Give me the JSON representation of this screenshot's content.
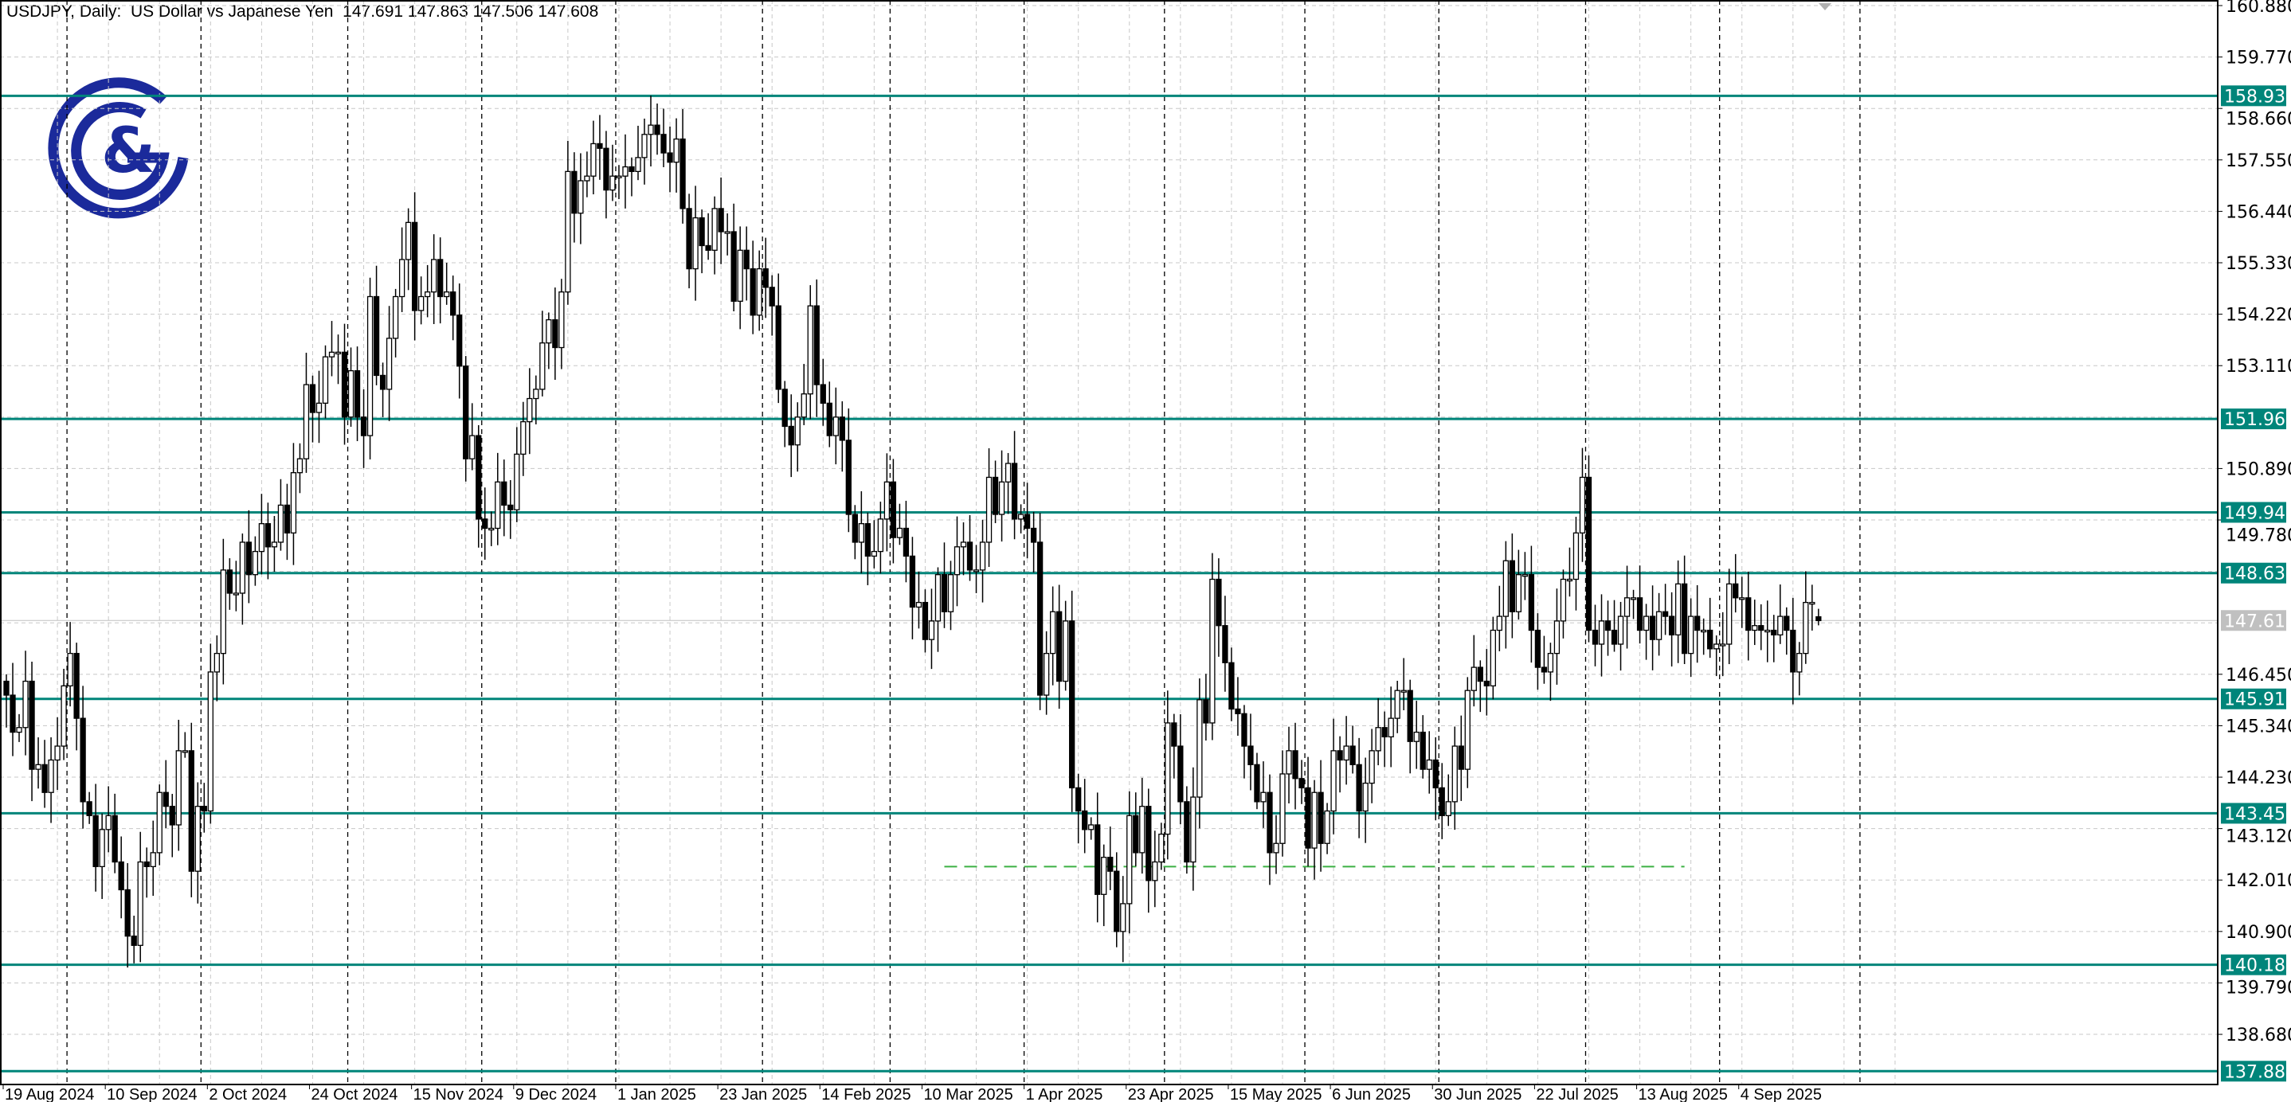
{
  "header": {
    "symbol": "USDJPY",
    "timeframe": "Daily",
    "description": "US Dollar vs Japanese Yen",
    "ohlc": "147.691 147.863 147.506 147.608",
    "title_text": "USDJPY, Daily:  US Dollar vs Japanese Yen  147.691 147.863 147.506 147.608"
  },
  "logo": {
    "text": "G&G",
    "color": "#1b2a9b"
  },
  "colors": {
    "level_line": "#00857a",
    "bid_label": "#c0c0c0",
    "dashed_support": "#3cb043",
    "bull_body": "#ffffff",
    "bear_body": "#000000",
    "grid": "#c8c8c8"
  },
  "chart_data": {
    "type": "candlestick",
    "symbol": "USDJPY",
    "timeframe": "Daily",
    "ylim": [
      137.885,
      160.88
    ],
    "y_ticks": [
      "160.880",
      "159.770",
      "158.660",
      "157.550",
      "156.440",
      "155.330",
      "154.220",
      "153.110",
      "150.890",
      "149.780",
      "146.450",
      "145.340",
      "144.230",
      "143.120",
      "142.010",
      "140.900",
      "139.790",
      "138.680"
    ],
    "x_ticks": [
      "19 Aug 2024",
      "10 Sep 2024",
      "2 Oct 2024",
      "24 Oct 2024",
      "15 Nov 2024",
      "9 Dec 2024",
      "1 Jan 2025",
      "23 Jan 2025",
      "14 Feb 2025",
      "10 Mar 2025",
      "1 Apr 2025",
      "23 Apr 2025",
      "15 May 2025",
      "6 Jun 2025",
      "30 Jun 2025",
      "22 Jul 2025",
      "13 Aug 2025",
      "4 Sep 2025"
    ],
    "grid": true,
    "last_bar": {
      "open": 147.691,
      "high": 147.863,
      "low": 147.506,
      "close": 147.608
    },
    "bid": "147.611",
    "closes": [
      146.0,
      145.2,
      145.3,
      146.3,
      144.4,
      144.5,
      143.9,
      144.6,
      144.9,
      146.2,
      146.9,
      145.5,
      143.7,
      143.4,
      142.3,
      143.1,
      143.4,
      142.4,
      141.8,
      140.8,
      140.6,
      142.4,
      142.3,
      142.6,
      143.9,
      143.6,
      143.2,
      144.8,
      144.8,
      142.2,
      143.6,
      143.5,
      146.5,
      146.9,
      148.7,
      148.2,
      148.2,
      149.3,
      148.6,
      149.1,
      149.7,
      149.2,
      149.3,
      150.1,
      149.5,
      150.8,
      151.1,
      152.7,
      152.1,
      152.3,
      153.3,
      153.4,
      153.4,
      152.0,
      153.0,
      152.0,
      151.6,
      154.6,
      152.9,
      152.6,
      153.7,
      154.6,
      155.4,
      156.2,
      154.3,
      154.6,
      154.7,
      155.4,
      154.6,
      154.7,
      154.2,
      153.1,
      151.1,
      151.6,
      149.8,
      149.6,
      149.6,
      150.6,
      150.1,
      150.0,
      151.2,
      151.9,
      152.4,
      152.6,
      153.6,
      154.1,
      153.5,
      154.7,
      157.3,
      156.4,
      157.1,
      157.2,
      157.9,
      157.8,
      156.9,
      157.2,
      157.2,
      157.4,
      157.3,
      157.6,
      158.1,
      158.3,
      158.1,
      157.7,
      157.5,
      158.0,
      156.5,
      155.2,
      156.3,
      155.7,
      155.6,
      156.5,
      156.0,
      156.0,
      154.5,
      155.6,
      155.2,
      154.2,
      155.2,
      154.8,
      154.4,
      152.6,
      151.8,
      151.4,
      152.0,
      152.5,
      154.4,
      152.7,
      152.3,
      151.6,
      152.0,
      151.5,
      149.9,
      149.3,
      149.7,
      149.0,
      149.1,
      149.8,
      150.6,
      149.4,
      149.6,
      149.0,
      147.9,
      148.0,
      147.2,
      147.6,
      148.6,
      147.8,
      148.6,
      149.2,
      149.3,
      148.7,
      148.7,
      149.3,
      150.7,
      149.9,
      150.6,
      151.0,
      149.8,
      149.9,
      149.6,
      149.3,
      146.0,
      146.9,
      147.8,
      146.3,
      147.6,
      144.0,
      143.5,
      143.1,
      143.2,
      141.7,
      142.5,
      142.2,
      140.9,
      141.5,
      143.4,
      142.6,
      143.6,
      142.0,
      142.4,
      143.0,
      145.4,
      144.9,
      143.7,
      142.4,
      143.8,
      145.9,
      145.4,
      148.5,
      147.5,
      146.7,
      145.7,
      145.6,
      144.9,
      144.5,
      143.7,
      143.9,
      142.6,
      142.8,
      144.3,
      144.8,
      144.2,
      144.0,
      142.7,
      143.9,
      142.8,
      143.5,
      144.8,
      144.6,
      144.9,
      144.5,
      143.5,
      144.1,
      144.8,
      145.3,
      145.1,
      145.5,
      146.1,
      146.1,
      145.0,
      145.2,
      144.4,
      144.6,
      144.0,
      143.4,
      143.7,
      144.9,
      144.4,
      146.1,
      146.6,
      146.3,
      146.2,
      147.4,
      147.7,
      148.9,
      147.8,
      148.6,
      148.6,
      147.4,
      146.6,
      146.5,
      146.9,
      147.6,
      148.5,
      148.5,
      149.5,
      150.7,
      147.4,
      147.1,
      147.6,
      147.4,
      147.1,
      147.7,
      148.1,
      148.1,
      147.4,
      147.7,
      147.2,
      147.8,
      147.7,
      147.3,
      148.4,
      146.9,
      147.7,
      147.4,
      147.4,
      147.0,
      147.1,
      147.1,
      148.4,
      148.1,
      148.1,
      147.4,
      147.5,
      147.4,
      147.4,
      147.3,
      147.7,
      147.4,
      146.5,
      146.9,
      148.0,
      148.0,
      147.608
    ],
    "horizontal_levels": [
      "158.933",
      "151.961",
      "149.944",
      "148.634",
      "145.919",
      "143.450",
      "140.181",
      "137.885"
    ],
    "dashed_support": {
      "value": 142.3,
      "from": "11 Mar 2025",
      "to": "7 Aug 2025"
    }
  }
}
